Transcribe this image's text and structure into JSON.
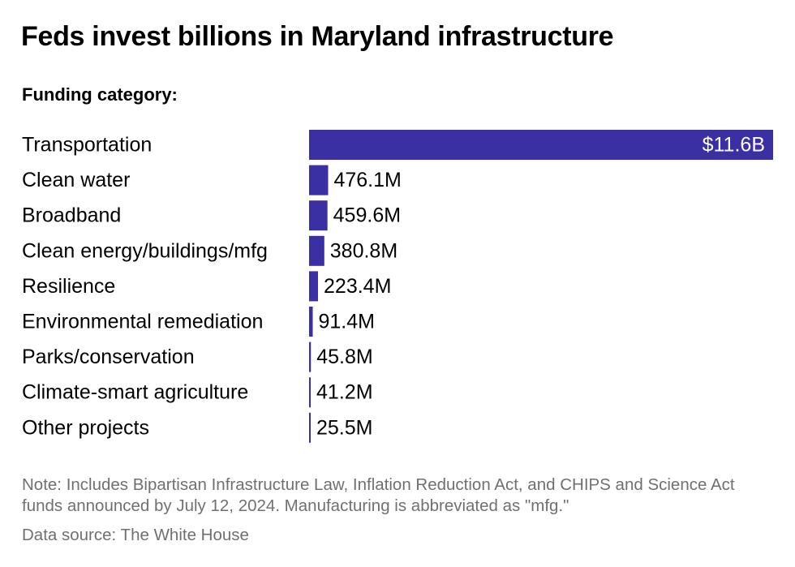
{
  "title": "Feds invest billions in Maryland infrastructure",
  "subtitle": "Funding category:",
  "note": "Note: Includes Bipartisan Infrastructure Law, Inflation Reduction Act, and CHIPS and Science Act funds announced by July 12, 2024. Manufacturing is abbreviated as \"mfg.\"",
  "source": "Data source: The White House",
  "colors": {
    "bar": "#3a2fa3"
  },
  "chart_data": {
    "type": "bar",
    "orientation": "horizontal",
    "title": "Feds invest billions in Maryland infrastructure",
    "subtitle": "Funding category:",
    "xlabel": "",
    "ylabel": "",
    "grid": false,
    "legend": "none",
    "unit": "USD millions",
    "categories": [
      "Transportation",
      "Clean water",
      "Broadband",
      "Clean energy/buildings/mfg",
      "Resilience",
      "Environmental remediation",
      "Parks/conservation",
      "Climate-smart agriculture",
      "Other projects"
    ],
    "values": [
      11600,
      476.1,
      459.6,
      380.8,
      223.4,
      91.4,
      45.8,
      41.2,
      25.5
    ],
    "labels": [
      "$11.6B",
      "476.1M",
      "459.6M",
      "380.8M",
      "223.4M",
      "91.4M",
      "45.8M",
      "41.2M",
      "25.5M"
    ],
    "xlim": [
      0,
      11600
    ]
  }
}
